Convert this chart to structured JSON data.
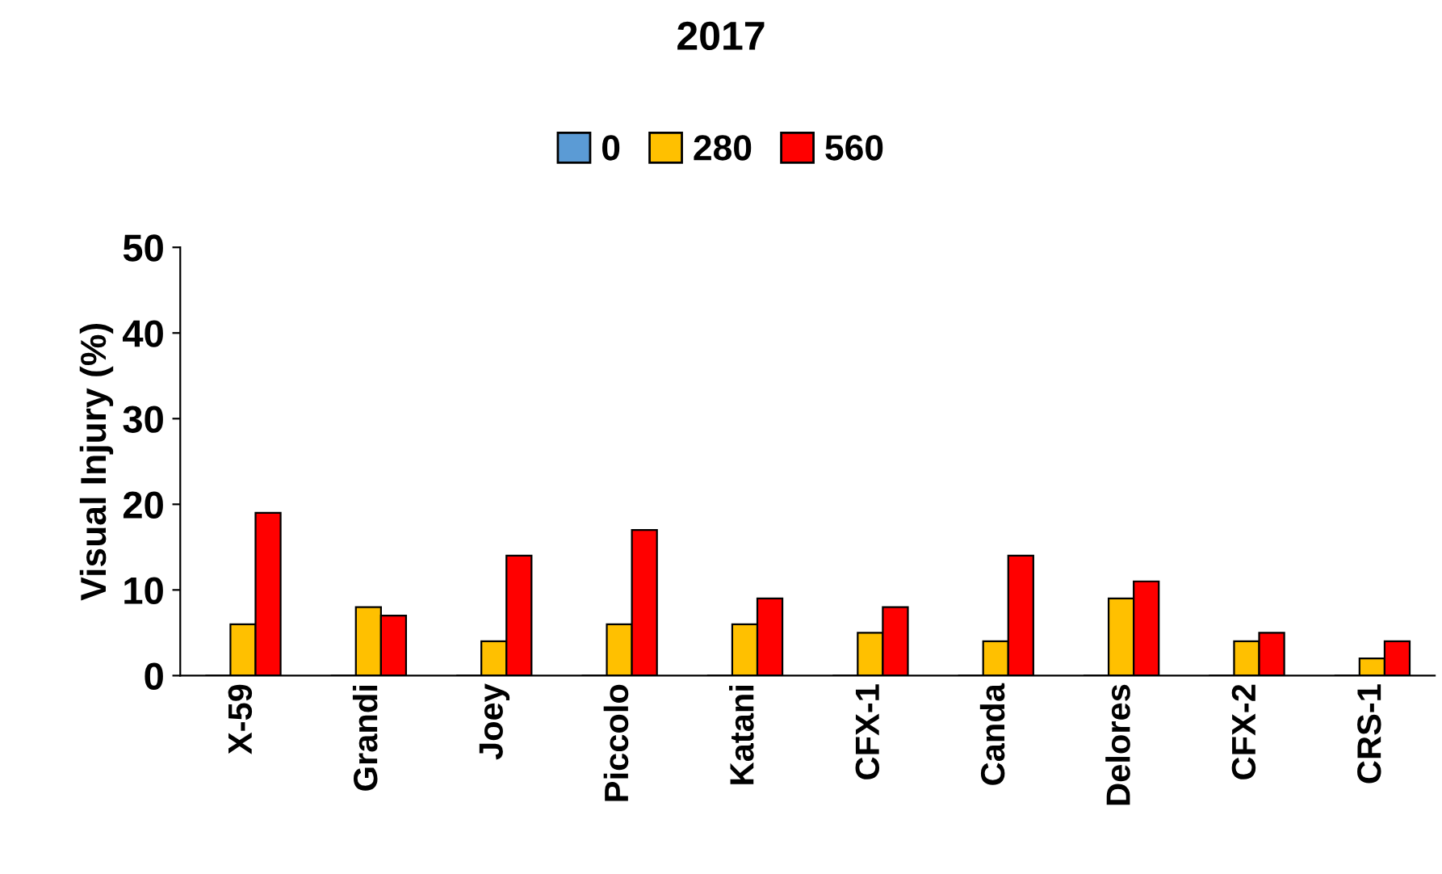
{
  "chart_data": {
    "type": "bar",
    "title": "2017",
    "ylabel": "Visual Injury (%)",
    "categories": [
      "X-59",
      "Grandi",
      "Joey",
      "Piccolo",
      "Katani",
      "CFX-1",
      "Canda",
      "Delores",
      "CFX-2",
      "CRS-1"
    ],
    "series": [
      {
        "name": "0",
        "color": "#5b9bd5",
        "values": [
          0,
          0,
          0,
          0,
          0,
          0,
          0,
          0,
          0,
          0
        ]
      },
      {
        "name": "280",
        "color": "#ffc000",
        "values": [
          6,
          8,
          4,
          6,
          6,
          5,
          4,
          9,
          4,
          2
        ]
      },
      {
        "name": "560",
        "color": "#ff0000",
        "values": [
          19,
          7,
          14,
          17,
          9,
          8,
          14,
          11,
          5,
          4
        ]
      }
    ],
    "ylim": [
      0,
      50
    ],
    "yticks": [
      0,
      10,
      20,
      30,
      40,
      50
    ],
    "grid": false,
    "legend": "top"
  }
}
